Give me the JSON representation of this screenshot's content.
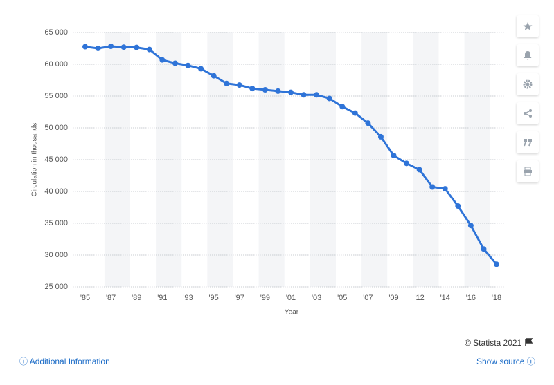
{
  "chart_data": {
    "type": "line",
    "y_axis_label": "Circulation in thousands",
    "x_axis_label": "Year",
    "categories": [
      "'85",
      null,
      "'87",
      null,
      "'89",
      null,
      "'91",
      null,
      "'93",
      null,
      "'95",
      null,
      "'97",
      null,
      "'99",
      null,
      "'01",
      null,
      "'03",
      null,
      "'05",
      null,
      "'07",
      null,
      "'09",
      null,
      "'12",
      null,
      "'14",
      null,
      "'16",
      null,
      "'18"
    ],
    "series": [
      {
        "name": "Circulation",
        "color": "#2f74d8",
        "values": [
          62766,
          62502,
          62826,
          62695,
          62649,
          62328,
          60687,
          60164,
          59812,
          59305,
          58193,
          56983,
          56728,
          56182,
          55979,
          55773,
          55578,
          55186,
          55185,
          54626,
          53345,
          52329,
          50742,
          48597,
          45653,
          44421,
          43433,
          40712,
          40420,
          37711,
          34657,
          30948,
          28554
        ]
      }
    ],
    "ylim": [
      25000,
      65000
    ],
    "yticks": [
      {
        "value": 25000,
        "label": "25 000"
      },
      {
        "value": 30000,
        "label": "30 000"
      },
      {
        "value": 35000,
        "label": "35 000"
      },
      {
        "value": 40000,
        "label": "40 000"
      },
      {
        "value": 45000,
        "label": "45 000"
      },
      {
        "value": 50000,
        "label": "50 000"
      },
      {
        "value": 55000,
        "label": "55 000"
      },
      {
        "value": 60000,
        "label": "60 000"
      },
      {
        "value": 65000,
        "label": "65 000"
      }
    ],
    "grid": true
  },
  "footer": {
    "copyright": "© Statista 2021",
    "additional_info": "Additional Information",
    "show_source": "Show source"
  }
}
